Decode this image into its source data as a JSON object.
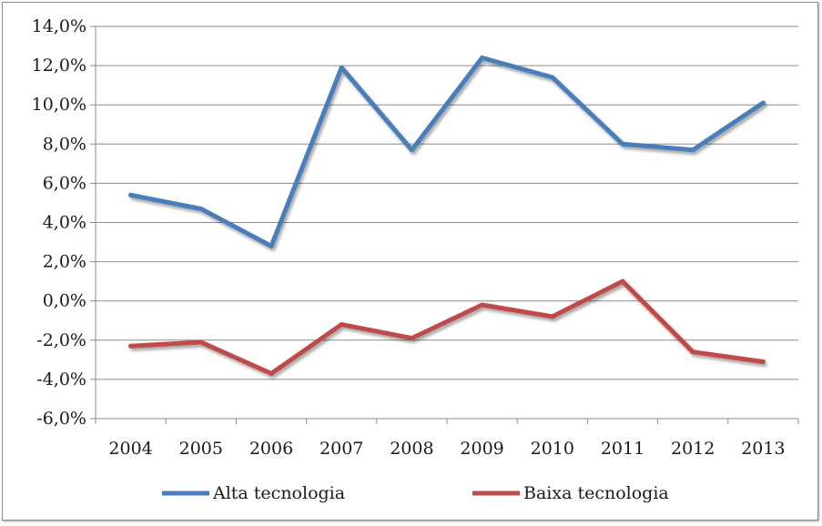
{
  "chart_data": {
    "type": "line",
    "title": "",
    "xlabel": "",
    "ylabel": "",
    "categories": [
      "2004",
      "2005",
      "2006",
      "2007",
      "2008",
      "2009",
      "2010",
      "2011",
      "2012",
      "2013"
    ],
    "ylim": [
      -6.0,
      14.0
    ],
    "ytick_step": 2.0,
    "ytick_labels": [
      "14,0%",
      "12,0%",
      "10,0%",
      "8,0%",
      "6,0%",
      "4,0%",
      "2,0%",
      "0,0%",
      "-2,0%",
      "-4,0%",
      "-6,0%"
    ],
    "grid": true,
    "legend_position": "bottom",
    "series": [
      {
        "name": "Alta tecnologia",
        "color": "#4a7ebb",
        "values": [
          5.4,
          4.7,
          2.8,
          11.9,
          7.7,
          12.4,
          11.4,
          8.0,
          7.7,
          10.1
        ]
      },
      {
        "name": "Baixa tecnologia",
        "color": "#be4b48",
        "values": [
          -2.3,
          -2.1,
          -3.7,
          -1.2,
          -1.9,
          -0.2,
          -0.8,
          1.0,
          -2.6,
          -3.1
        ]
      }
    ]
  }
}
